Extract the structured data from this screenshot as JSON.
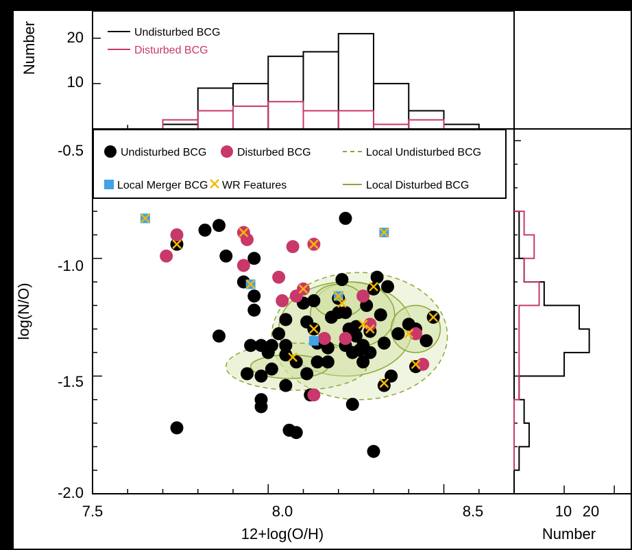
{
  "colors": {
    "frame": "#000000",
    "background": "#ffffff",
    "undisturbed": "#000000",
    "disturbed": "#c8386a",
    "merger": "#3fa3e6",
    "wr": "#f5b800",
    "contour_line": "#8aa832",
    "contour_fill": "#d2e2a6"
  },
  "chart_data": [
    {
      "panel": "top-histogram",
      "type": "step-histogram",
      "ylabel": "Number",
      "y_ticks": [
        "10",
        "20"
      ],
      "ylim": [
        0,
        26
      ],
      "xlim": [
        7.5,
        8.7
      ],
      "bin_edges": [
        7.7,
        7.8,
        7.9,
        8.0,
        8.1,
        8.2,
        8.3,
        8.4,
        8.5,
        8.6
      ],
      "legend": {
        "position": "top-left"
      },
      "series": [
        {
          "name": "Undisturbed BCG",
          "color": "#000000",
          "counts": [
            1,
            9,
            10,
            16,
            17,
            21,
            10,
            4,
            1
          ]
        },
        {
          "name": "Disturbed BCG",
          "color": "#c8386a",
          "counts": [
            2,
            4,
            5,
            6,
            4,
            4,
            1,
            2,
            0
          ]
        }
      ]
    },
    {
      "panel": "main-scatter",
      "type": "scatter",
      "xlabel": "12+log(O/H)",
      "ylabel": "log(N/O)",
      "x_ticks": [
        "7.5",
        "8.0",
        "8.5"
      ],
      "y_ticks": [
        "-0.5",
        "-1.0",
        "-1.5",
        "-2.0"
      ],
      "xlim": [
        7.5,
        8.7
      ],
      "ylim": [
        -2.0,
        -0.45
      ],
      "legend": {
        "position": "top-left",
        "items": [
          {
            "label": "Undisturbed BCG",
            "symbol": "dot-black"
          },
          {
            "label": "Disturbed BCG",
            "symbol": "dot-red"
          },
          {
            "label": "Local Undisturbed BCG",
            "symbol": "dashed-line"
          },
          {
            "label": "Local Merger BCG",
            "symbol": "blue-square"
          },
          {
            "label": "WR Features",
            "symbol": "yellow-cross"
          },
          {
            "label": "Local Disturbed BCG",
            "symbol": "solid-line"
          }
        ]
      },
      "series": [
        {
          "name": "Undisturbed BCG",
          "points": [
            [
              7.74,
              -0.94
            ],
            [
              7.74,
              -1.72
            ],
            [
              7.82,
              -0.88
            ],
            [
              7.86,
              -0.86
            ],
            [
              7.88,
              -0.99
            ],
            [
              7.86,
              -1.33
            ],
            [
              7.93,
              -1.1
            ],
            [
              7.96,
              -1.0
            ],
            [
              7.96,
              -1.16
            ],
            [
              7.96,
              -1.22
            ],
            [
              7.95,
              -1.37
            ],
            [
              7.94,
              -1.49
            ],
            [
              7.98,
              -1.37
            ],
            [
              7.98,
              -1.5
            ],
            [
              7.98,
              -1.6
            ],
            [
              7.98,
              -1.63
            ],
            [
              8.0,
              -1.4
            ],
            [
              8.01,
              -1.37
            ],
            [
              8.01,
              -1.47
            ],
            [
              8.03,
              -1.32
            ],
            [
              8.05,
              -1.26
            ],
            [
              8.05,
              -1.37
            ],
            [
              8.05,
              -1.41
            ],
            [
              8.05,
              -1.54
            ],
            [
              8.06,
              -1.73
            ],
            [
              8.08,
              -1.74
            ],
            [
              8.08,
              -1.44
            ],
            [
              8.1,
              -1.19
            ],
            [
              8.11,
              -1.27
            ],
            [
              8.11,
              -1.49
            ],
            [
              8.12,
              -1.58
            ],
            [
              8.13,
              -1.3
            ],
            [
              8.13,
              -1.18
            ],
            [
              8.14,
              -1.36
            ],
            [
              8.17,
              -1.38
            ],
            [
              8.18,
              -1.25
            ],
            [
              8.2,
              -1.17
            ],
            [
              8.2,
              -1.23
            ],
            [
              8.21,
              -1.09
            ],
            [
              8.22,
              -1.23
            ],
            [
              8.22,
              -0.83
            ],
            [
              8.22,
              -1.37
            ],
            [
              8.23,
              -1.3
            ],
            [
              8.24,
              -1.4
            ],
            [
              8.24,
              -1.62
            ],
            [
              8.25,
              -1.33
            ],
            [
              8.25,
              -1.29
            ],
            [
              8.26,
              -1.39
            ],
            [
              8.27,
              -1.44
            ],
            [
              8.27,
              -1.37
            ],
            [
              8.28,
              -1.2
            ],
            [
              8.29,
              -1.31
            ],
            [
              8.29,
              -1.4
            ],
            [
              8.3,
              -1.13
            ],
            [
              8.31,
              -1.08
            ],
            [
              8.32,
              -1.24
            ],
            [
              8.33,
              -1.36
            ],
            [
              8.33,
              -1.54
            ],
            [
              8.35,
              -1.5
            ],
            [
              8.3,
              -1.82
            ],
            [
              8.37,
              -1.32
            ],
            [
              8.4,
              -1.28
            ],
            [
              8.42,
              -1.3
            ],
            [
              8.42,
              -1.46
            ],
            [
              8.45,
              -1.35
            ],
            [
              8.47,
              -1.25
            ],
            [
              8.34,
              -1.12
            ],
            [
              8.17,
              -1.44
            ],
            [
              8.14,
              -1.44
            ]
          ]
        },
        {
          "name": "Disturbed BCG",
          "points": [
            [
              7.71,
              -0.99
            ],
            [
              7.74,
              -0.9
            ],
            [
              7.93,
              -0.89
            ],
            [
              7.93,
              -1.03
            ],
            [
              7.94,
              -0.92
            ],
            [
              8.03,
              -1.08
            ],
            [
              8.04,
              -1.18
            ],
            [
              8.07,
              -0.95
            ],
            [
              8.08,
              -1.16
            ],
            [
              8.1,
              -1.13
            ],
            [
              8.13,
              -0.94
            ],
            [
              8.13,
              -1.58
            ],
            [
              8.16,
              -1.34
            ],
            [
              8.22,
              -1.34
            ],
            [
              8.27,
              -1.16
            ],
            [
              8.29,
              -1.28
            ],
            [
              8.42,
              -1.32
            ],
            [
              8.44,
              -1.45
            ]
          ]
        },
        {
          "name": "Local Merger BCG",
          "points": [
            [
              7.65,
              -0.83
            ],
            [
              7.95,
              -1.11
            ],
            [
              8.13,
              -1.35
            ],
            [
              8.2,
              -1.16
            ],
            [
              8.33,
              -0.89
            ]
          ]
        },
        {
          "name": "WR Features",
          "points": [
            [
              7.65,
              -0.83
            ],
            [
              7.74,
              -0.94
            ],
            [
              7.93,
              -0.89
            ],
            [
              7.95,
              -1.11
            ],
            [
              8.07,
              -1.42
            ],
            [
              8.1,
              -1.13
            ],
            [
              8.13,
              -0.94
            ],
            [
              8.13,
              -1.3
            ],
            [
              8.21,
              -1.19
            ],
            [
              8.27,
              -1.28
            ],
            [
              8.29,
              -1.3
            ],
            [
              8.3,
              -1.12
            ],
            [
              8.33,
              -0.89
            ],
            [
              8.33,
              -1.53
            ],
            [
              8.2,
              -1.16
            ],
            [
              8.4,
              -1.32
            ],
            [
              8.42,
              -1.45
            ],
            [
              8.47,
              -1.25
            ]
          ]
        }
      ]
    },
    {
      "panel": "right-histogram",
      "type": "step-histogram",
      "xlabel": "Number",
      "x_ticks": [
        "10",
        "20"
      ],
      "xlim": [
        0,
        26
      ],
      "bin_edges": [
        -1.9,
        -1.8,
        -1.7,
        -1.6,
        -1.5,
        -1.4,
        -1.3,
        -1.2,
        -1.1,
        -1.0,
        -0.9,
        -0.8
      ],
      "series": [
        {
          "name": "Undisturbed BCG",
          "color": "#000000",
          "counts": [
            1,
            3,
            2,
            1,
            10,
            15,
            13,
            6,
            2,
            1,
            1
          ]
        },
        {
          "name": "Disturbed BCG",
          "color": "#c8386a",
          "counts": [
            0,
            0,
            0,
            1,
            1,
            1,
            1,
            5,
            2,
            4,
            2
          ]
        }
      ]
    }
  ]
}
